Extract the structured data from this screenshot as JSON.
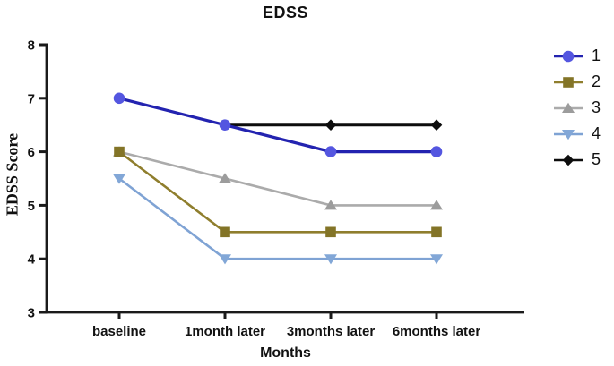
{
  "title": "EDSS",
  "chart_data": {
    "type": "line",
    "title": "EDSS",
    "xlabel": "Months",
    "ylabel": "EDSS Score",
    "categories": [
      "baseline",
      "1month later",
      "3months later",
      "6months later"
    ],
    "yticks": [
      3,
      4,
      5,
      6,
      7,
      8
    ],
    "ylim": [
      3,
      8
    ],
    "grid": false,
    "legend_position": "right",
    "axis_color": "#1a1a1a",
    "series": [
      {
        "name": "1",
        "marker": "circle",
        "marker_color": "#5456e0",
        "line_color": "#2323b0",
        "line_width": 3.2,
        "values": [
          7,
          6.5,
          6,
          6
        ]
      },
      {
        "name": "2",
        "marker": "square",
        "marker_color": "#837427",
        "line_color": "#8f7e2d",
        "line_width": 2.6,
        "values": [
          6,
          4.5,
          4.5,
          4.5
        ]
      },
      {
        "name": "3",
        "marker": "triangle-up",
        "marker_color": "#9c9c9c",
        "line_color": "#ababab",
        "line_width": 2.6,
        "values": [
          6,
          5.5,
          5,
          5
        ]
      },
      {
        "name": "4",
        "marker": "triangle-down",
        "marker_color": "#82a7d7",
        "line_color": "#7fa3d4",
        "line_width": 2.6,
        "values": [
          5.5,
          4,
          4,
          4
        ]
      },
      {
        "name": "5",
        "marker": "diamond",
        "marker_color": "#0d0d0d",
        "line_color": "#0d0d0d",
        "line_width": 3.0,
        "values": [
          null,
          6.5,
          6.5,
          6.5
        ]
      }
    ]
  }
}
